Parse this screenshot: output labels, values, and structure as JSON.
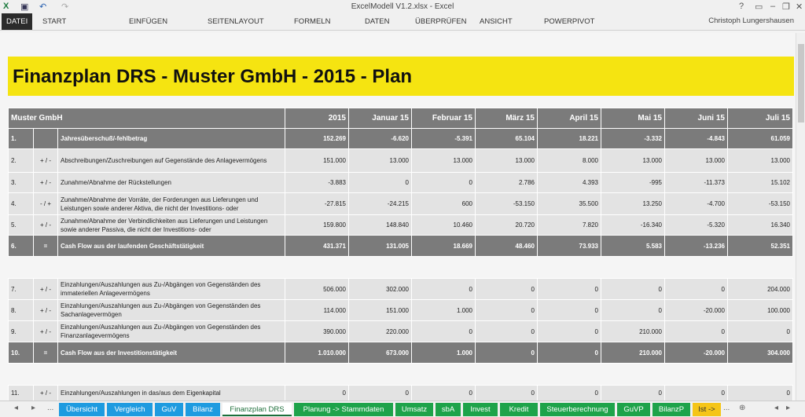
{
  "window": {
    "title": "ExcelModell V1.2.xlsx - Excel",
    "user": "Christoph Lungershausen"
  },
  "ribbon": {
    "tabs": [
      "DATEI",
      "START",
      "EINFÜGEN",
      "SEITENLAYOUT",
      "FORMELN",
      "DATEN",
      "ÜBERPRÜFEN",
      "ANSICHT",
      "POWERPIVOT"
    ]
  },
  "banner": {
    "title": "Finanzplan DRS - Muster GmbH - 2015 - Plan"
  },
  "table": {
    "header": {
      "label": "Muster GmbH",
      "columns": [
        "2015",
        "Januar 15",
        "Februar 15",
        "März 15",
        "April 15",
        "Mai 15",
        "Juni 15",
        "Juli 15"
      ]
    },
    "rows": [
      {
        "num": "1.",
        "sign": "",
        "desc": "Jahresüberschuß/-fehlbetrag",
        "values": [
          "152.269",
          "-6.620",
          "-5.391",
          "65.104",
          "18.221",
          "-3.332",
          "-4.843",
          "61.059"
        ],
        "style": "dark"
      },
      {
        "num": "2.",
        "sign": "+ / -",
        "desc": "Abschreibungen/Zuschreibungen auf Gegenstände des  Anlagevermögens",
        "values": [
          "151.000",
          "13.000",
          "13.000",
          "13.000",
          "8.000",
          "13.000",
          "13.000",
          "13.000"
        ],
        "style": "light"
      },
      {
        "num": "3.",
        "sign": "+ / -",
        "desc": "Zunahme/Abnahme der Rückstellungen",
        "values": [
          "-3.883",
          "0",
          "0",
          "2.786",
          "4.393",
          "-995",
          "-11.373",
          "15.102"
        ],
        "style": "light"
      },
      {
        "num": "4.",
        "sign": "- / +",
        "desc": "Zunahme/Abnahme der Vorräte, der Forderungen aus Lieferungen und Leistungen sowie anderer Aktiva, die nicht der Investitions- oder",
        "values": [
          "-27.815",
          "-24.215",
          "600",
          "-53.150",
          "35.500",
          "13.250",
          "-4.700",
          "-53.150"
        ],
        "style": "light"
      },
      {
        "num": "5.",
        "sign": "+ / -",
        "desc": "Zunahme/Abnahme der Verbindlichkeiten aus Lieferungen und Leistungen sowie anderer Passiva, die nicht der Investitions- oder",
        "values": [
          "159.800",
          "148.840",
          "10.460",
          "20.720",
          "7.820",
          "-16.340",
          "-5.320",
          "16.340"
        ],
        "style": "light"
      },
      {
        "num": "6.",
        "sign": "=",
        "desc": "Cash Flow aus der laufenden Geschäftstätigkeit",
        "values": [
          "431.371",
          "131.005",
          "18.669",
          "48.460",
          "73.933",
          "5.583",
          "-13.236",
          "52.351"
        ],
        "style": "dark"
      },
      {
        "style": "gap"
      },
      {
        "num": "7.",
        "sign": "+ / -",
        "desc": "Einzahlungen/Auszahlungen aus Zu-/Abgängen von Gegenständen des immateriellen Anlagevermögens",
        "values": [
          "506.000",
          "302.000",
          "0",
          "0",
          "0",
          "0",
          "0",
          "204.000"
        ],
        "style": "light"
      },
      {
        "num": "8.",
        "sign": "+ / -",
        "desc": "Einzahlungen/Auszahlungen aus Zu-/Abgängen von Gegenständen des Sachanlagevermögen",
        "values": [
          "114.000",
          "151.000",
          "1.000",
          "0",
          "0",
          "0",
          "-20.000",
          "100.000"
        ],
        "style": "light"
      },
      {
        "num": "9.",
        "sign": "+ / -",
        "desc": "Einzahlungen/Auszahlungen aus Zu-/Abgängen von Gegenständen des Finanzanlagevermögens",
        "values": [
          "390.000",
          "220.000",
          "0",
          "0",
          "0",
          "210.000",
          "0",
          "0"
        ],
        "style": "light"
      },
      {
        "num": "10.",
        "sign": "=",
        "desc": "Cash Flow aus der Investitionstätigkeit",
        "values": [
          "1.010.000",
          "673.000",
          "1.000",
          "0",
          "0",
          "210.000",
          "-20.000",
          "304.000"
        ],
        "style": "dark"
      },
      {
        "style": "gap"
      },
      {
        "num": "11.",
        "sign": "+ / -",
        "desc": "Einzahlungen/Auszahlungen in das/aus dem Eigenkapital",
        "values": [
          "0",
          "0",
          "0",
          "0",
          "0",
          "0",
          "0",
          "0"
        ],
        "style": "light"
      }
    ]
  },
  "sheet_tabs": [
    {
      "label": "Übersicht",
      "color": "#1e9be0"
    },
    {
      "label": "Vergleich",
      "color": "#1e9be0"
    },
    {
      "label": "GuV",
      "color": "#1e9be0"
    },
    {
      "label": "Bilanz",
      "color": "#1e9be0"
    },
    {
      "label": "Finanzplan DRS",
      "color": "#ffffff",
      "active": true
    },
    {
      "label": "Planung -> Stammdaten",
      "color": "#1ea34a"
    },
    {
      "label": "Umsatz",
      "color": "#1ea34a"
    },
    {
      "label": "sbA",
      "color": "#1ea34a"
    },
    {
      "label": "Invest",
      "color": "#1ea34a"
    },
    {
      "label": "Kredit",
      "color": "#1ea34a"
    },
    {
      "label": "Steuerberechnung",
      "color": "#1ea34a"
    },
    {
      "label": "GuVP",
      "color": "#1ea34a"
    },
    {
      "label": "BilanzP",
      "color": "#1ea34a"
    },
    {
      "label": "Ist ->",
      "color": "#f5c518"
    }
  ],
  "nav": {
    "more": "..."
  }
}
